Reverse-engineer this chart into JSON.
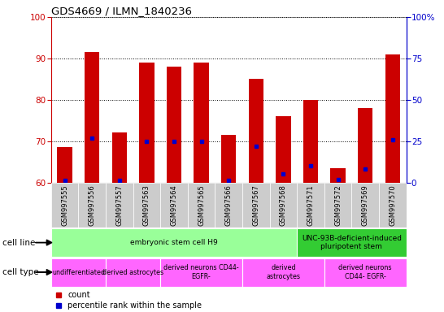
{
  "title": "GDS4669 / ILMN_1840236",
  "samples": [
    "GSM997555",
    "GSM997556",
    "GSM997557",
    "GSM997563",
    "GSM997564",
    "GSM997565",
    "GSM997566",
    "GSM997567",
    "GSM997568",
    "GSM997571",
    "GSM997572",
    "GSM997569",
    "GSM997570"
  ],
  "red_values": [
    68.5,
    91.5,
    72.2,
    89.0,
    88.0,
    89.0,
    71.5,
    85.0,
    76.0,
    80.0,
    63.5,
    78.0,
    91.0
  ],
  "blue_values": [
    1.5,
    27.0,
    1.5,
    25.0,
    25.0,
    25.0,
    1.5,
    22.0,
    5.0,
    10.0,
    2.0,
    8.0,
    26.0
  ],
  "ylim_left": [
    60,
    100
  ],
  "ylim_right": [
    0,
    100
  ],
  "yticks_left": [
    60,
    70,
    80,
    90,
    100
  ],
  "ytick_labels_right": [
    "0",
    "25",
    "50",
    "75",
    "100%"
  ],
  "left_axis_color": "#cc0000",
  "right_axis_color": "#0000cc",
  "bar_color": "#cc0000",
  "dot_color": "#0000cc",
  "grid_color": "#000000",
  "cell_line_groups": [
    {
      "label": "embryonic stem cell H9",
      "start": 0,
      "end": 9,
      "color": "#99ff99"
    },
    {
      "label": "UNC-93B-deficient-induced\npluripotent stem",
      "start": 9,
      "end": 13,
      "color": "#33cc33"
    }
  ],
  "cell_type_groups": [
    {
      "label": "undifferentiated",
      "start": 0,
      "end": 2
    },
    {
      "label": "derived astrocytes",
      "start": 2,
      "end": 4
    },
    {
      "label": "derived neurons CD44-\nEGFR-",
      "start": 4,
      "end": 7
    },
    {
      "label": "derived\nastrocytes",
      "start": 7,
      "end": 10
    },
    {
      "label": "derived neurons\nCD44- EGFR-",
      "start": 10,
      "end": 13
    }
  ],
  "cell_type_color": "#ff66ff",
  "row_label_cell_line": "cell line",
  "row_label_cell_type": "cell type",
  "legend_red": "count",
  "legend_blue": "percentile rank within the sample",
  "bar_width": 0.55,
  "figsize": [
    5.46,
    3.84
  ],
  "dpi": 100
}
